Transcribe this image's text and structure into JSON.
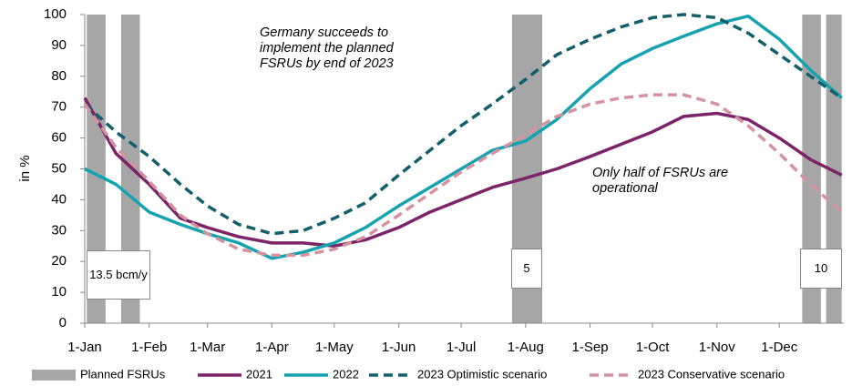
{
  "chart_data": {
    "type": "line",
    "y_label": "in %",
    "x": [
      0,
      15,
      31,
      46,
      59,
      74,
      90,
      105,
      120,
      135,
      151,
      166,
      181,
      196,
      212,
      227,
      243,
      258,
      273,
      288,
      304,
      319,
      334,
      349,
      364
    ],
    "xlim": [
      0,
      365
    ],
    "xticks": [
      {
        "value": 0,
        "label": "1-Jan"
      },
      {
        "value": 31,
        "label": "1-Feb"
      },
      {
        "value": 59,
        "label": "1-Mar"
      },
      {
        "value": 90,
        "label": "1-Apr"
      },
      {
        "value": 120,
        "label": "1-May"
      },
      {
        "value": 151,
        "label": "1-Jun"
      },
      {
        "value": 181,
        "label": "1-Jul"
      },
      {
        "value": 212,
        "label": "1-Aug"
      },
      {
        "value": 243,
        "label": "1-Sep"
      },
      {
        "value": 273,
        "label": "1-Oct"
      },
      {
        "value": 304,
        "label": "1-Nov"
      },
      {
        "value": 334,
        "label": "1-Dec"
      }
    ],
    "ylim": [
      0,
      100
    ],
    "yticks": [
      0,
      10,
      20,
      30,
      40,
      50,
      60,
      70,
      80,
      90,
      100
    ],
    "fsru": {
      "name": "Planned FSRUs",
      "color": "#a6a6a6",
      "ranges": [
        [
          1,
          10
        ],
        [
          17.5,
          26.5
        ],
        [
          205.5,
          220
        ],
        [
          345,
          354
        ],
        [
          356.5,
          364
        ]
      ]
    },
    "series": [
      {
        "name": "2021",
        "color": "#7b2468",
        "dash": false,
        "values": [
          73,
          55,
          45,
          34,
          31,
          28,
          26,
          26,
          25,
          27,
          31,
          36,
          40,
          44,
          47,
          50,
          54,
          58,
          62,
          67,
          68,
          66,
          60,
          53,
          48
        ]
      },
      {
        "name": "2022",
        "color": "#17a2b0",
        "dash": false,
        "values": [
          50,
          45,
          36,
          32,
          29,
          26,
          21,
          23,
          26,
          31,
          38,
          44,
          50,
          56,
          59,
          66,
          76,
          84,
          89,
          93,
          97,
          99.5,
          92,
          82,
          73
        ]
      },
      {
        "name": "2023 Optimistic scenario",
        "color": "#145f6c",
        "dash": true,
        "values": [
          71,
          62,
          54,
          45,
          38,
          32,
          29,
          30,
          34,
          39,
          48,
          56,
          64,
          71,
          79,
          87,
          92,
          96,
          99,
          100,
          99,
          94,
          87,
          80,
          73
        ]
      },
      {
        "name": "2023 Conservative scenario",
        "color": "#d3949f",
        "dash": true,
        "values": [
          71,
          57,
          46,
          35,
          29,
          24,
          22,
          22,
          24,
          28,
          35,
          42,
          49,
          55,
          61,
          67,
          71,
          73,
          74,
          74,
          71,
          64,
          55,
          45,
          36
        ]
      }
    ],
    "boxes": [
      "13.5 bcm/y",
      "5",
      "10"
    ],
    "annotations": [
      "Germany succeeds to implement the planned FSRUs by end of 2023",
      "Only half of FSRUs are operational"
    ]
  }
}
